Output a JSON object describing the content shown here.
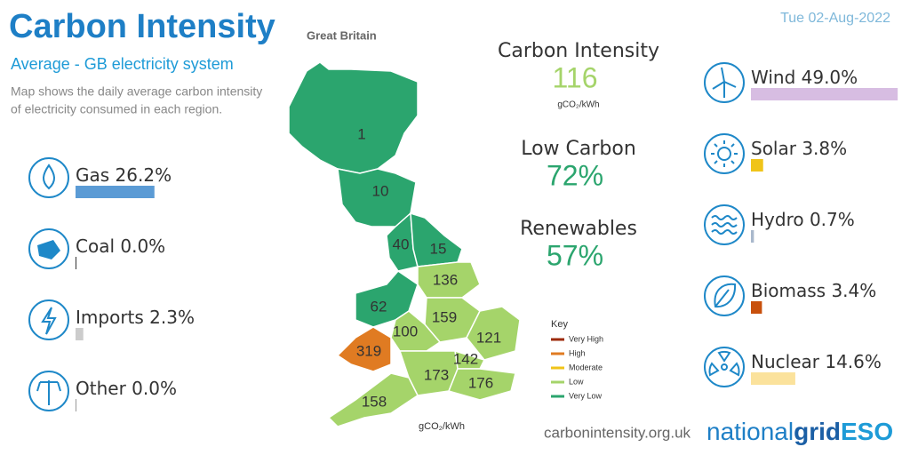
{
  "header": {
    "title": "Carbon Intensity",
    "region": "Great Britain",
    "date": "Tue 02-Aug-2022",
    "subtitle": "Average - GB electricity system",
    "description": [
      "Map shows the daily average carbon intensity",
      "of electricity consumed in each region."
    ]
  },
  "summary": [
    {
      "label": "Carbon Intensity",
      "value": 116,
      "unit": "gCO₂/kWh",
      "color": "#a5d46a"
    },
    {
      "label": "Low Carbon",
      "value": 72,
      "value_label": "72%",
      "color": "#2ba56e"
    },
    {
      "label": "Renewables",
      "value": 57,
      "value_label": "57%",
      "color": "#2ba56e"
    }
  ],
  "fuels": [
    {
      "name": "Gas",
      "value": 26.2,
      "value_label": "26.2%",
      "color": "#5b9bd5"
    },
    {
      "name": "Coal",
      "value": 0.0,
      "value_label": "0.0%",
      "color": "#333333"
    },
    {
      "name": "Imports",
      "value": 2.3,
      "value_label": "2.3%",
      "color": "#cccccc"
    },
    {
      "name": "Other",
      "value": 0.0,
      "value_label": "0.0%",
      "color": "#999999"
    },
    {
      "name": "Wind",
      "value": 49.0,
      "value_label": "49.0%",
      "color": "#d7bde2"
    },
    {
      "name": "Solar",
      "value": 3.8,
      "value_label": "3.8%",
      "color": "#f0c419"
    },
    {
      "name": "Hydro",
      "value": 0.7,
      "value_label": "0.7%",
      "color": "#a9b8cc"
    },
    {
      "name": "Biomass",
      "value": 3.4,
      "value_label": "3.4%",
      "color": "#c8500c"
    },
    {
      "name": "Nuclear",
      "value": 14.6,
      "value_label": "14.6%",
      "color": "#fbe29c"
    }
  ],
  "map": {
    "regions": [
      {
        "value": 1,
        "level": "Very Low"
      },
      {
        "value": 10,
        "level": "Very Low"
      },
      {
        "value": 40,
        "level": "Very Low"
      },
      {
        "value": 15,
        "level": "Very Low"
      },
      {
        "value": 136,
        "level": "Low"
      },
      {
        "value": 62,
        "level": "Very Low"
      },
      {
        "value": 159,
        "level": "Low"
      },
      {
        "value": 100,
        "level": "Low"
      },
      {
        "value": 121,
        "level": "Low"
      },
      {
        "value": 319,
        "level": "High"
      },
      {
        "value": 142,
        "level": "Low"
      },
      {
        "value": 173,
        "level": "Low"
      },
      {
        "value": 176,
        "level": "Low"
      },
      {
        "value": 158,
        "level": "Low"
      }
    ],
    "key_title": "Key",
    "key": [
      {
        "label": "Very High",
        "color": "#9c2a0a"
      },
      {
        "label": "High",
        "color": "#e07b22"
      },
      {
        "label": "Moderate",
        "color": "#f0c419"
      },
      {
        "label": "Low",
        "color": "#a5d46a"
      },
      {
        "label": "Very Low",
        "color": "#2ba56e"
      }
    ],
    "unit": "gCO₂/kWh"
  },
  "footer": {
    "url": "carbonintensity.org.uk",
    "brand": [
      "national",
      "grid",
      "ESO"
    ]
  }
}
